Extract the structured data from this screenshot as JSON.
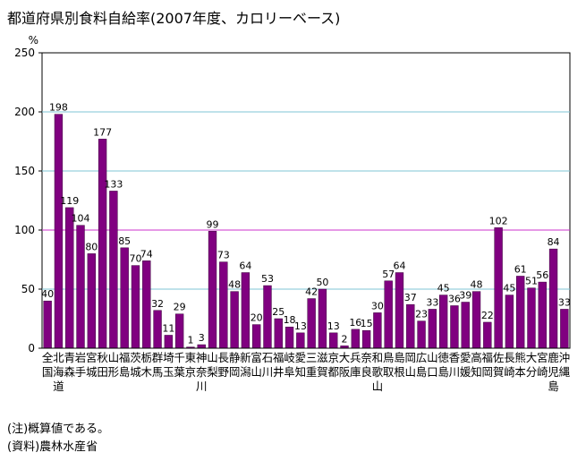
{
  "title": "都道府県別食料自給率(2007年度、カロリーベース)",
  "notes": [
    "(注)概算値である。",
    "(資料)農林水産省"
  ],
  "colors": {
    "bar": "#800080",
    "bar_stroke": "#3a003a",
    "grid": "#7fc4d6",
    "reference": "#cc33cc"
  },
  "chart_data": {
    "type": "bar",
    "title": "都道府県別食料自給率(2007年度、カロリーベース)",
    "ylabel": "%",
    "xlabel": "",
    "ylim": [
      0,
      250
    ],
    "yticks": [
      0,
      50,
      100,
      150,
      200,
      250
    ],
    "reference_line": 100,
    "categories": [
      "全国",
      "北海道",
      "青森",
      "岩手",
      "宮城",
      "秋田",
      "山形",
      "福島",
      "茨城",
      "栃木",
      "群馬",
      "埼玉",
      "千葉",
      "東京",
      "神奈川",
      "山梨",
      "長野",
      "静岡",
      "新潟",
      "富山",
      "石川",
      "福井",
      "岐阜",
      "愛知",
      "三重",
      "滋賀",
      "京都",
      "大阪",
      "兵庫",
      "奈良",
      "和歌山",
      "鳥取",
      "島根",
      "岡山",
      "広島",
      "山口",
      "徳島",
      "香川",
      "愛媛",
      "高知",
      "福岡",
      "佐賀",
      "長崎",
      "熊本",
      "大分",
      "宮崎",
      "鹿児島",
      "沖縄"
    ],
    "values": [
      40,
      198,
      119,
      104,
      80,
      177,
      133,
      85,
      70,
      74,
      32,
      11,
      29,
      1,
      3,
      99,
      73,
      48,
      64,
      20,
      53,
      25,
      18,
      13,
      42,
      50,
      13,
      2,
      16,
      15,
      30,
      57,
      64,
      37,
      23,
      33,
      45,
      36,
      39,
      48,
      22,
      102,
      45,
      61,
      51,
      56,
      84,
      33
    ]
  }
}
